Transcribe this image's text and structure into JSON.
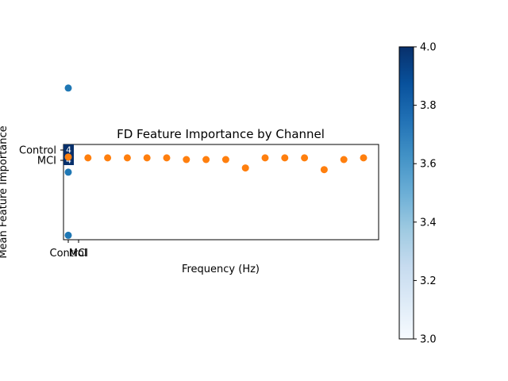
{
  "chart_data": {
    "type": "scatter",
    "title": "FD Feature Importance by Channel",
    "xlabel": "Frequency (Hz)",
    "ylabel": "Mean Feature Importance",
    "y_tick_labels": [
      "Control",
      "MCI"
    ],
    "x_tick_labels": [
      "Control",
      "MCI"
    ],
    "grid": false,
    "legend": "none",
    "cell_annotations": [
      "4",
      "4"
    ],
    "series": [
      {
        "color": "#1f77b4",
        "points": [
          {
            "x": 0.0,
            "y": 0.85
          },
          {
            "x": 0.0,
            "y": -0.9
          },
          {
            "x": 0.0,
            "y": -0.15
          }
        ]
      },
      {
        "color": "#ff7f0e",
        "points": [
          {
            "x": 0,
            "y": 0.03
          },
          {
            "x": 1,
            "y": 0.02
          },
          {
            "x": 2,
            "y": 0.02
          },
          {
            "x": 3,
            "y": 0.02
          },
          {
            "x": 4,
            "y": 0.02
          },
          {
            "x": 5,
            "y": 0.02
          },
          {
            "x": 6,
            "y": 0.0
          },
          {
            "x": 7,
            "y": 0.0
          },
          {
            "x": 8,
            "y": 0.0
          },
          {
            "x": 9,
            "y": -0.1
          },
          {
            "x": 10,
            "y": 0.02
          },
          {
            "x": 11,
            "y": 0.02
          },
          {
            "x": 12,
            "y": 0.02
          },
          {
            "x": 13,
            "y": -0.12
          },
          {
            "x": 14,
            "y": 0.0
          },
          {
            "x": 15,
            "y": 0.02
          }
        ]
      }
    ],
    "colorbar": {
      "min": 3.0,
      "max": 4.0,
      "ticks": [
        "3.0",
        "3.2",
        "3.4",
        "3.6",
        "3.8",
        "4.0"
      ],
      "colormap": "Blues",
      "colors": [
        "#f7fbff",
        "#deebf7",
        "#c6dbef",
        "#9ecae1",
        "#6baed6",
        "#4292c6",
        "#2171b5",
        "#08519c",
        "#08306b"
      ]
    }
  }
}
